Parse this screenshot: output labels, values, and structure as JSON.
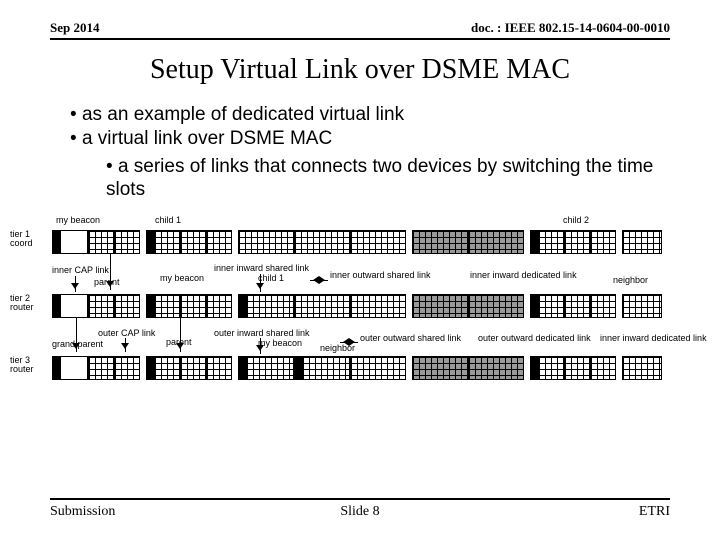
{
  "header": {
    "left": "Sep 2014",
    "right": "doc. : IEEE 802.15-14-0604-00-0010"
  },
  "title": "Setup Virtual Link over DSME MAC",
  "bullets": {
    "b1": "as an example of dedicated virtual link",
    "b2": "a virtual link over DSME MAC",
    "s1": "a series of links that connects two devices by switching the time slots"
  },
  "diagram": {
    "tier1_label": "tier 1\ncoord",
    "tier2_label": "tier 2\nrouter",
    "tier3_label": "tier 3\nrouter",
    "top_labels": {
      "my_beacon": "my beacon",
      "child1": "child 1",
      "child2": "child 2"
    },
    "mid_labels": {
      "inner_cap": "inner  CAP link",
      "parent": "parent",
      "my_beacon": "my beacon",
      "inner_inward_shared": "inner inward shared link",
      "child1": "child 1",
      "inner_outward_shared": "inner outward shared link",
      "inner_inward_dedicated": "inner inward dedicated link",
      "neighbor": "neighbor"
    },
    "low_labels": {
      "outer_cap": "outer CAP link",
      "grand_parent": "grand parent",
      "parent": "parent",
      "outer_inward_shared": "outer inward shared link",
      "my_beacon": "my beacon",
      "neighbor2": "neighbor",
      "outer_outward_shared": "outer outward shared link",
      "outer_outward_dedicated": "outer outward dedicated link",
      "inner_inward_dedicated2": "inner inward dedicated link"
    },
    "colors": {
      "solid": "#000000",
      "grid_bg": "#ffffff",
      "grid_dark_bg": "#999999",
      "line": "#000000"
    },
    "block_widths": {
      "beacon": 8,
      "cap": 30,
      "grid_small": 30,
      "grid_big": 58,
      "gap": 4
    }
  },
  "footer": {
    "left": "Submission",
    "center": "Slide 8",
    "right": "ETRI"
  }
}
